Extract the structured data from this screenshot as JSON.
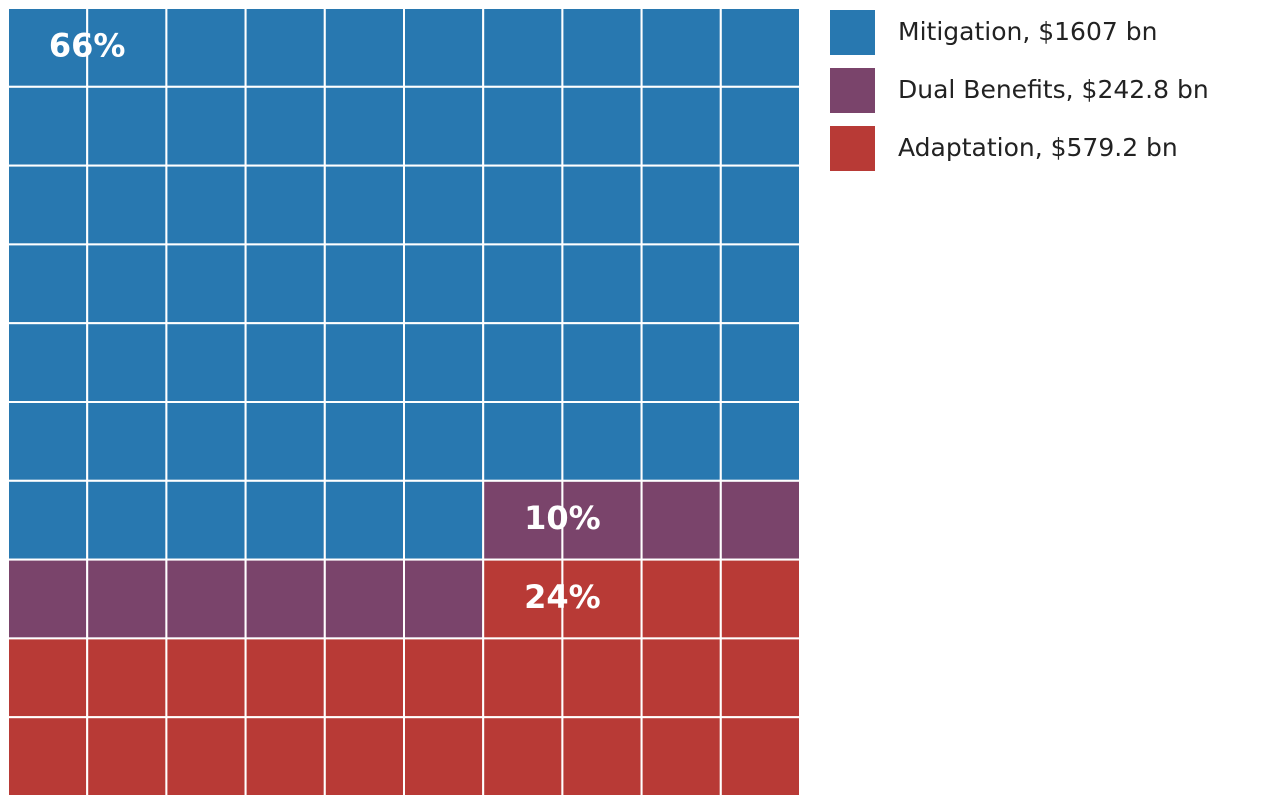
{
  "chart_data": {
    "type": "waffle",
    "grid_size": [
      10,
      10
    ],
    "series": [
      {
        "name": "Mitigation, $1607 bn",
        "color": "#2878b0",
        "values": 66,
        "value_labels": "66%"
      },
      {
        "name": "Dual Benefits, $242.8 bn",
        "color": "#7a446b",
        "values": 10,
        "value_labels": "10%"
      },
      {
        "name": "Adaptation, $579.2 bn",
        "color": "#b83a36",
        "values": 24,
        "value_labels": "24%"
      }
    ]
  }
}
